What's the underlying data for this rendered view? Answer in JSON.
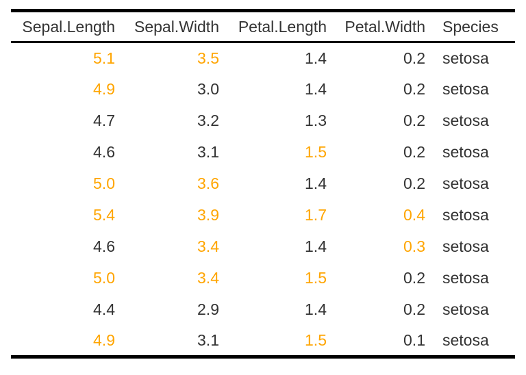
{
  "colors": {
    "highlight": "#FFA500",
    "text": "#333333",
    "rule": "#000000",
    "background": "#FFFFFF"
  },
  "table": {
    "header": [
      {
        "label": "Sepal.Length"
      },
      {
        "label": "Sepal.Width"
      },
      {
        "label": "Petal.Length"
      },
      {
        "label": "Petal.Width"
      },
      {
        "label": "Species"
      }
    ],
    "rows": [
      {
        "cells": [
          {
            "text": "5.1",
            "highlight": true
          },
          {
            "text": "3.5",
            "highlight": true
          },
          {
            "text": "1.4",
            "highlight": false
          },
          {
            "text": "0.2",
            "highlight": false
          },
          {
            "text": "setosa",
            "highlight": false
          }
        ]
      },
      {
        "cells": [
          {
            "text": "4.9",
            "highlight": true
          },
          {
            "text": "3.0",
            "highlight": false
          },
          {
            "text": "1.4",
            "highlight": false
          },
          {
            "text": "0.2",
            "highlight": false
          },
          {
            "text": "setosa",
            "highlight": false
          }
        ]
      },
      {
        "cells": [
          {
            "text": "4.7",
            "highlight": false
          },
          {
            "text": "3.2",
            "highlight": false
          },
          {
            "text": "1.3",
            "highlight": false
          },
          {
            "text": "0.2",
            "highlight": false
          },
          {
            "text": "setosa",
            "highlight": false
          }
        ]
      },
      {
        "cells": [
          {
            "text": "4.6",
            "highlight": false
          },
          {
            "text": "3.1",
            "highlight": false
          },
          {
            "text": "1.5",
            "highlight": true
          },
          {
            "text": "0.2",
            "highlight": false
          },
          {
            "text": "setosa",
            "highlight": false
          }
        ]
      },
      {
        "cells": [
          {
            "text": "5.0",
            "highlight": true
          },
          {
            "text": "3.6",
            "highlight": true
          },
          {
            "text": "1.4",
            "highlight": false
          },
          {
            "text": "0.2",
            "highlight": false
          },
          {
            "text": "setosa",
            "highlight": false
          }
        ]
      },
      {
        "cells": [
          {
            "text": "5.4",
            "highlight": true
          },
          {
            "text": "3.9",
            "highlight": true
          },
          {
            "text": "1.7",
            "highlight": true
          },
          {
            "text": "0.4",
            "highlight": true
          },
          {
            "text": "setosa",
            "highlight": false
          }
        ]
      },
      {
        "cells": [
          {
            "text": "4.6",
            "highlight": false
          },
          {
            "text": "3.4",
            "highlight": true
          },
          {
            "text": "1.4",
            "highlight": false
          },
          {
            "text": "0.3",
            "highlight": true
          },
          {
            "text": "setosa",
            "highlight": false
          }
        ]
      },
      {
        "cells": [
          {
            "text": "5.0",
            "highlight": true
          },
          {
            "text": "3.4",
            "highlight": true
          },
          {
            "text": "1.5",
            "highlight": true
          },
          {
            "text": "0.2",
            "highlight": false
          },
          {
            "text": "setosa",
            "highlight": false
          }
        ]
      },
      {
        "cells": [
          {
            "text": "4.4",
            "highlight": false
          },
          {
            "text": "2.9",
            "highlight": false
          },
          {
            "text": "1.4",
            "highlight": false
          },
          {
            "text": "0.2",
            "highlight": false
          },
          {
            "text": "setosa",
            "highlight": false
          }
        ]
      },
      {
        "cells": [
          {
            "text": "4.9",
            "highlight": true
          },
          {
            "text": "3.1",
            "highlight": false
          },
          {
            "text": "1.5",
            "highlight": true
          },
          {
            "text": "0.1",
            "highlight": false
          },
          {
            "text": "setosa",
            "highlight": false
          }
        ]
      }
    ]
  },
  "chart_data": {
    "type": "table",
    "columns": [
      "Sepal.Length",
      "Sepal.Width",
      "Petal.Length",
      "Petal.Width",
      "Species"
    ],
    "rows": [
      [
        5.1,
        3.5,
        1.4,
        0.2,
        "setosa"
      ],
      [
        4.9,
        3.0,
        1.4,
        0.2,
        "setosa"
      ],
      [
        4.7,
        3.2,
        1.3,
        0.2,
        "setosa"
      ],
      [
        4.6,
        3.1,
        1.5,
        0.2,
        "setosa"
      ],
      [
        5.0,
        3.6,
        1.4,
        0.2,
        "setosa"
      ],
      [
        5.4,
        3.9,
        1.7,
        0.4,
        "setosa"
      ],
      [
        4.6,
        3.4,
        1.4,
        0.3,
        "setosa"
      ],
      [
        5.0,
        3.4,
        1.5,
        0.2,
        "setosa"
      ],
      [
        4.4,
        2.9,
        1.4,
        0.2,
        "setosa"
      ],
      [
        4.9,
        3.1,
        1.5,
        0.1,
        "setosa"
      ]
    ],
    "highlight_color": "#FFA500"
  }
}
